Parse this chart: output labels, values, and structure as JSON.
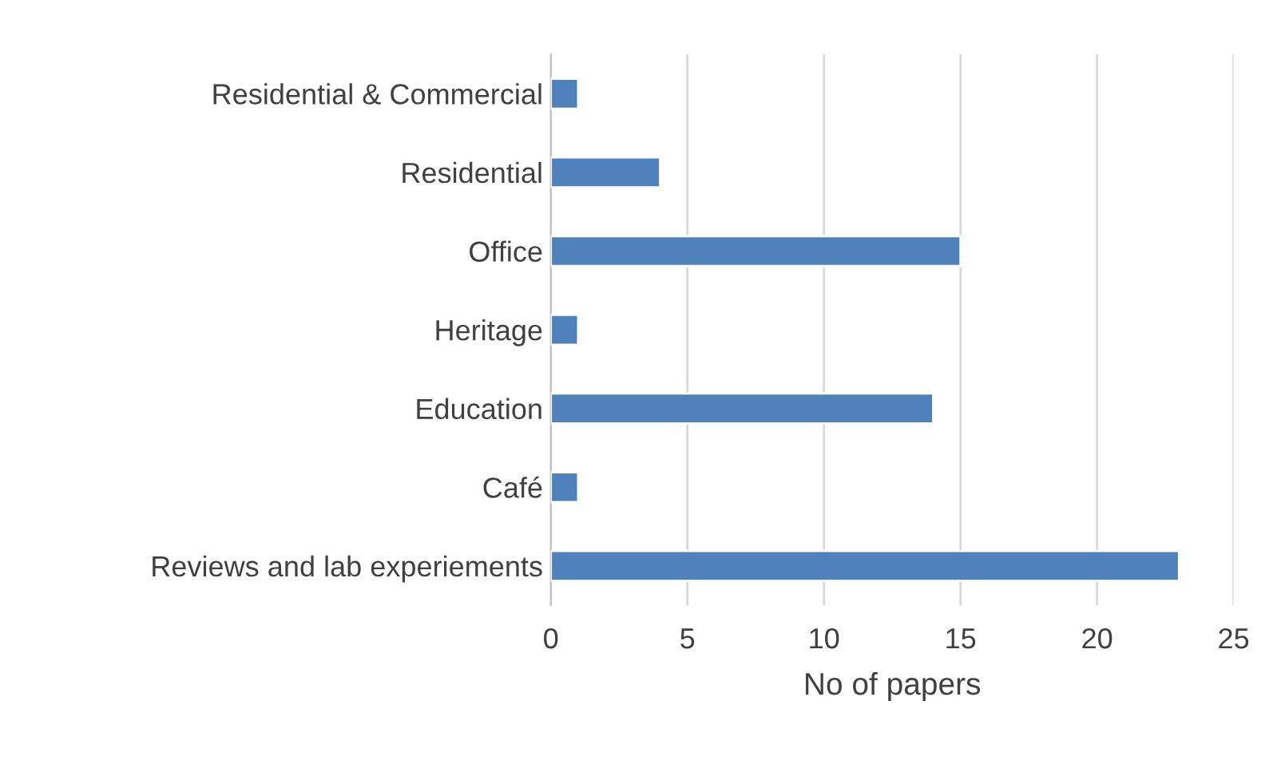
{
  "chart_data": {
    "type": "bar",
    "orientation": "horizontal",
    "xlabel": "No of papers",
    "categories": [
      "Residential & Commercial",
      "Residential",
      "Office",
      "Heritage",
      "Education",
      "Café",
      "Reviews and lab experiements"
    ],
    "values": [
      1,
      4,
      15,
      1,
      14,
      1,
      23
    ],
    "color": "#4f81bd",
    "xlim": [
      0,
      25
    ],
    "xticks": [
      0,
      5,
      10,
      15,
      20,
      25
    ],
    "grid": "x"
  }
}
